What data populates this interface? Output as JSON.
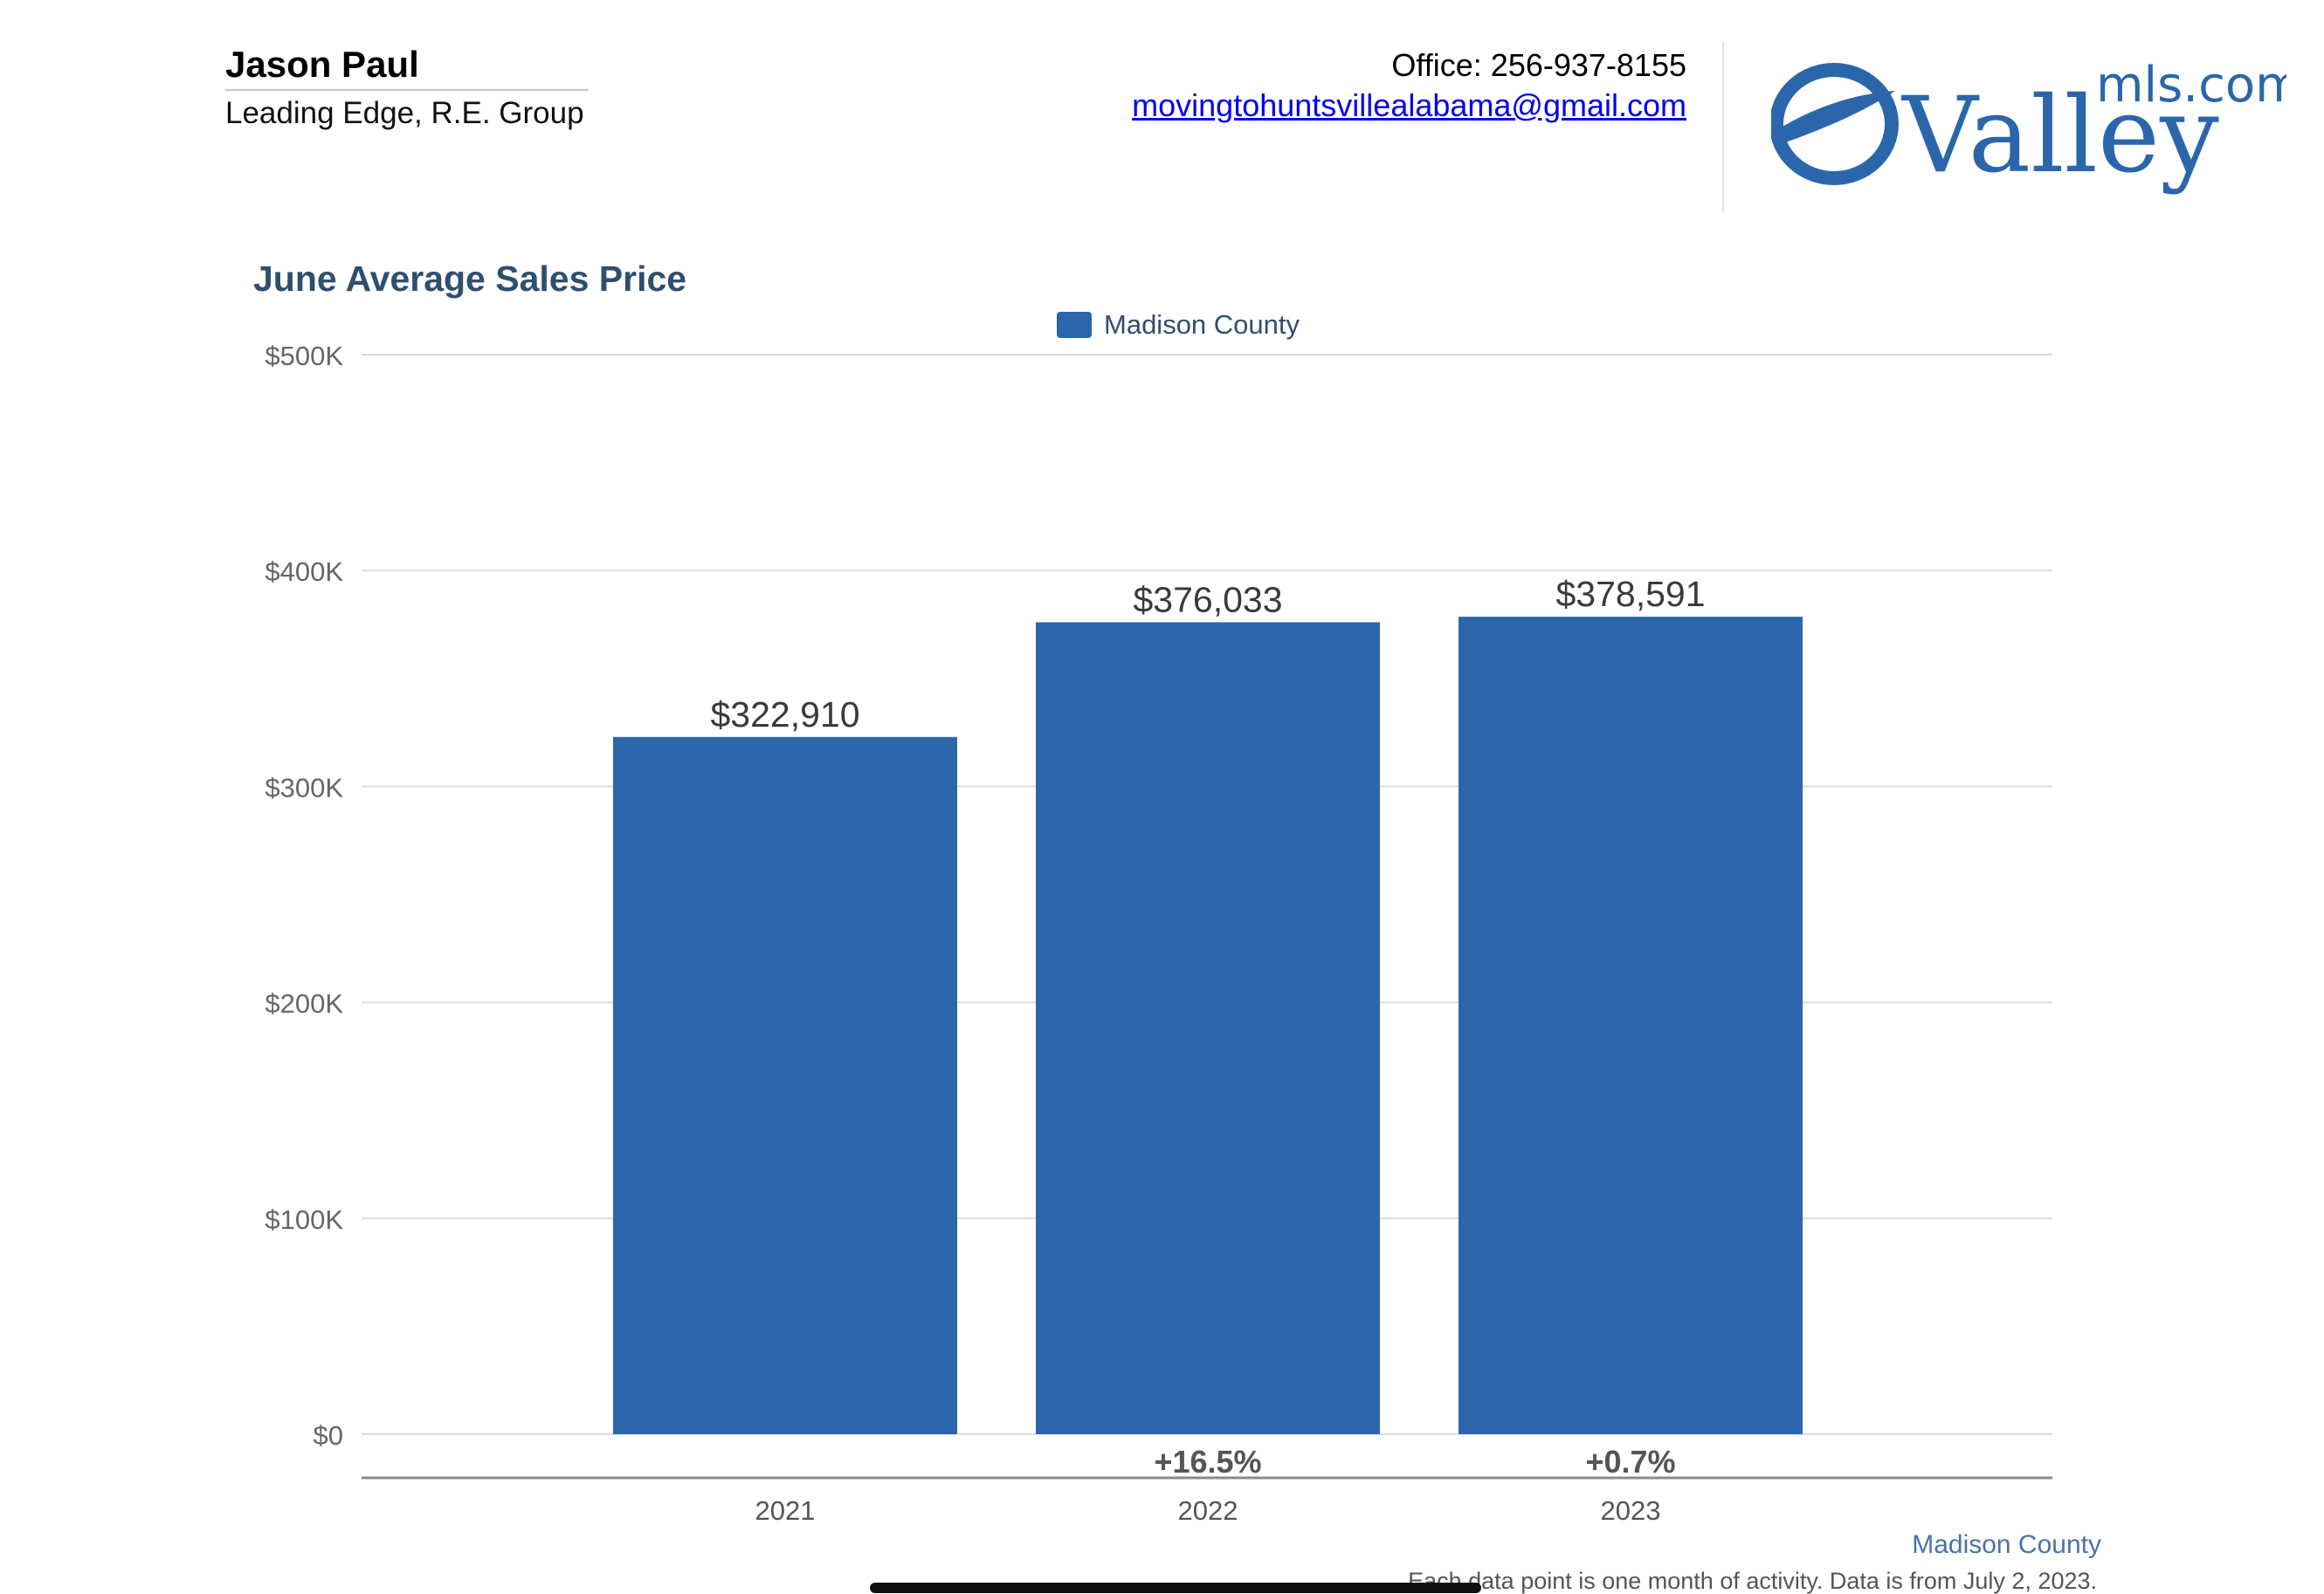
{
  "agent": {
    "name": "Jason Paul",
    "company": "Leading Edge, R.E. Group"
  },
  "contact": {
    "office": "Office: 256-937-8155",
    "email": "movingtohuntsvillealabama@gmail.com"
  },
  "logo": {
    "domain": "mls.com",
    "name": "Valley",
    "icon": "valley-eye-logo-icon"
  },
  "colors": {
    "bar": "#2b66ab",
    "title": "#2f4f6f",
    "footer_series": "#4a74a5"
  },
  "chart_data": {
    "type": "bar",
    "title": "June Average Sales Price",
    "categories": [
      "2021",
      "2022",
      "2023"
    ],
    "series": [
      {
        "name": "Madison County",
        "values": [
          322910,
          376033,
          378591
        ],
        "labels": [
          "$322,910",
          "$376,033",
          "$378,591"
        ]
      }
    ],
    "changes": [
      "",
      "+16.5%",
      "+0.7%"
    ],
    "yticks": [
      0,
      100000,
      200000,
      300000,
      400000,
      500000
    ],
    "ytick_labels": [
      "$0",
      "$100K",
      "$200K",
      "$300K",
      "$400K",
      "$500K"
    ],
    "ylim": [
      0,
      500000
    ],
    "xlabel": "",
    "ylabel": "",
    "grid": true,
    "legend": "top-center"
  },
  "footer": {
    "series_label": "Madison County",
    "note": "Each data point is one month of activity. Data is from July 2, 2023."
  }
}
